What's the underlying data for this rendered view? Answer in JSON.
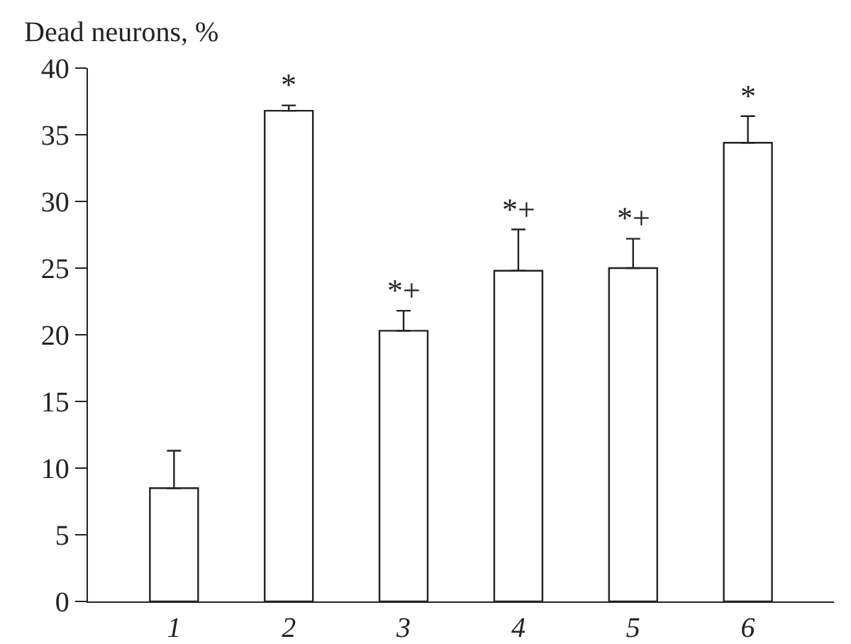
{
  "chart_data": {
    "type": "bar",
    "ylabel": "Dead neurons, %",
    "categories": [
      "1",
      "2",
      "3",
      "4",
      "5",
      "6"
    ],
    "values": [
      8.5,
      36.8,
      20.3,
      24.8,
      25.0,
      34.4
    ],
    "errors": [
      [
        8.5,
        11.3
      ],
      [
        36.8,
        37.2
      ],
      [
        20.3,
        21.8
      ],
      [
        24.8,
        27.9
      ],
      [
        25.0,
        27.2
      ],
      [
        34.4,
        36.4
      ]
    ],
    "color": "#ffffff",
    "ylim": [
      0,
      40
    ],
    "yticks": [
      0,
      5,
      10,
      15,
      20,
      25,
      30,
      35,
      40
    ],
    "grid": false,
    "annotations": [
      {
        "text": "*",
        "x": "2",
        "y": 37.2
      },
      {
        "text": "*+",
        "x": "3",
        "y": 21.8
      },
      {
        "text": "*+",
        "x": "4",
        "y": 27.9
      },
      {
        "text": "*+",
        "x": "5",
        "y": 27.2
      },
      {
        "text": "*",
        "x": "6",
        "y": 36.4
      }
    ]
  }
}
